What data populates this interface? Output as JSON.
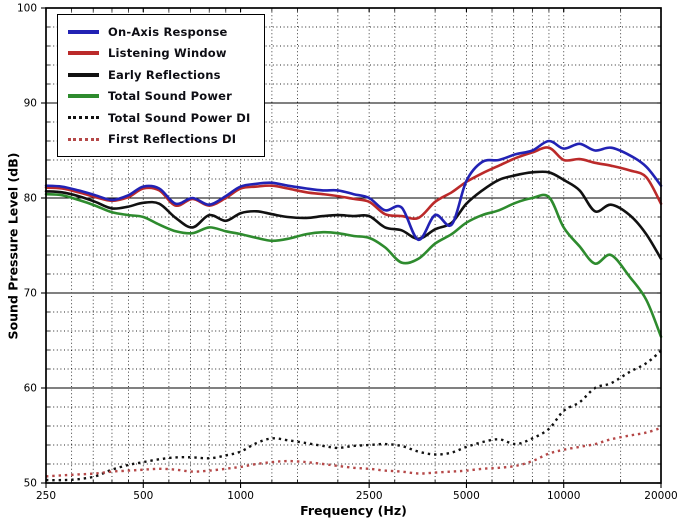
{
  "chart_data": {
    "type": "line",
    "title": "",
    "xlabel": "Frequency (Hz)",
    "ylabel": "Sound Pressure Level (dB)",
    "x_scale": "log",
    "xlim": [
      250,
      20000
    ],
    "ylim": [
      50,
      100
    ],
    "x_ticks": [
      250,
      500,
      1000,
      2500,
      5000,
      10000,
      20000
    ],
    "x_tick_labels": [
      "250",
      "500",
      "1000",
      "2500",
      "5000",
      "10000",
      "20000"
    ],
    "y_ticks": [
      50,
      60,
      70,
      80,
      90,
      100
    ],
    "y_minor_step": 2,
    "x_minor_gridlines": [
      300,
      350,
      400,
      450,
      500,
      600,
      700,
      800,
      900,
      1000,
      1250,
      1500,
      2000,
      2500,
      3000,
      4000,
      5000,
      6000,
      7000,
      8000,
      9000,
      10000,
      15000,
      20000
    ],
    "grid": {
      "major_style": "solid",
      "minor_style": "dotted",
      "color": "#000000"
    },
    "axis_color": "#000000",
    "legend_position": "top-left",
    "x": [
      250,
      280,
      315,
      355,
      400,
      450,
      500,
      560,
      630,
      710,
      800,
      900,
      1000,
      1120,
      1250,
      1400,
      1600,
      1800,
      2000,
      2240,
      2500,
      2800,
      3150,
      3550,
      4000,
      4500,
      5000,
      5600,
      6300,
      7100,
      8000,
      9000,
      10000,
      11200,
      12500,
      14000,
      16000,
      18000,
      20000
    ],
    "series": [
      {
        "name": "On-Axis Response",
        "color": "#2222b4",
        "style": "solid",
        "values": [
          81.3,
          81.2,
          80.8,
          80.3,
          79.8,
          80.3,
          81.2,
          81.0,
          79.4,
          80.0,
          79.3,
          80.2,
          81.2,
          81.5,
          81.6,
          81.3,
          81.0,
          80.8,
          80.8,
          80.4,
          80.0,
          78.7,
          79.0,
          75.6,
          78.2,
          77.2,
          81.8,
          83.8,
          84.0,
          84.6,
          85.0,
          86.0,
          85.2,
          85.7,
          85.0,
          85.3,
          84.5,
          83.3,
          81.3
        ]
      },
      {
        "name": "Listening Window",
        "color": "#bb2a2a",
        "style": "solid",
        "values": [
          81.1,
          81.0,
          80.6,
          80.1,
          79.7,
          80.1,
          81.0,
          80.8,
          79.2,
          79.9,
          79.2,
          80.0,
          81.0,
          81.2,
          81.3,
          81.0,
          80.6,
          80.4,
          80.2,
          79.9,
          79.6,
          78.3,
          78.1,
          77.9,
          79.6,
          80.6,
          81.7,
          82.6,
          83.4,
          84.2,
          84.8,
          85.3,
          84.0,
          84.1,
          83.7,
          83.4,
          82.9,
          82.2,
          79.4
        ]
      },
      {
        "name": "Early Reflections",
        "color": "#111111",
        "style": "solid",
        "values": [
          80.7,
          80.6,
          80.2,
          79.6,
          78.9,
          79.1,
          79.5,
          79.4,
          77.9,
          76.9,
          78.2,
          77.6,
          78.4,
          78.6,
          78.3,
          78.0,
          77.9,
          78.1,
          78.2,
          78.1,
          78.1,
          76.9,
          76.6,
          75.7,
          76.7,
          77.4,
          79.4,
          80.8,
          81.9,
          82.4,
          82.7,
          82.7,
          81.9,
          80.8,
          78.6,
          79.3,
          78.2,
          76.2,
          73.6
        ]
      },
      {
        "name": "Total Sound Power",
        "color": "#2e8b2e",
        "style": "solid",
        "values": [
          80.4,
          80.3,
          79.8,
          79.2,
          78.5,
          78.2,
          78.0,
          77.2,
          76.5,
          76.3,
          76.9,
          76.5,
          76.2,
          75.8,
          75.5,
          75.7,
          76.2,
          76.4,
          76.3,
          76.0,
          75.8,
          74.8,
          73.2,
          73.6,
          75.2,
          76.2,
          77.4,
          78.2,
          78.7,
          79.5,
          80.0,
          80.1,
          76.9,
          74.9,
          73.1,
          74.0,
          71.7,
          69.3,
          65.4
        ]
      },
      {
        "name": "Total Sound Power DI",
        "color": "#111111",
        "style": "dotted",
        "values": [
          50.3,
          50.3,
          50.4,
          50.7,
          51.4,
          51.9,
          52.2,
          52.5,
          52.7,
          52.7,
          52.6,
          52.9,
          53.3,
          54.2,
          54.7,
          54.5,
          54.2,
          53.9,
          53.7,
          53.9,
          54.0,
          54.1,
          53.9,
          53.3,
          53.0,
          53.2,
          53.8,
          54.3,
          54.6,
          54.1,
          54.7,
          55.7,
          57.6,
          58.5,
          60.0,
          60.5,
          61.7,
          62.6,
          63.9
        ]
      },
      {
        "name": "First Reflections DI",
        "color": "#b54848",
        "style": "dotted",
        "values": [
          50.7,
          50.8,
          50.9,
          51.0,
          51.2,
          51.3,
          51.4,
          51.5,
          51.4,
          51.2,
          51.3,
          51.5,
          51.7,
          52.0,
          52.2,
          52.3,
          52.2,
          52.0,
          51.8,
          51.6,
          51.5,
          51.3,
          51.2,
          51.0,
          51.1,
          51.2,
          51.3,
          51.5,
          51.6,
          51.8,
          52.3,
          53.1,
          53.5,
          53.8,
          54.1,
          54.6,
          55.0,
          55.3,
          55.8
        ]
      }
    ]
  }
}
